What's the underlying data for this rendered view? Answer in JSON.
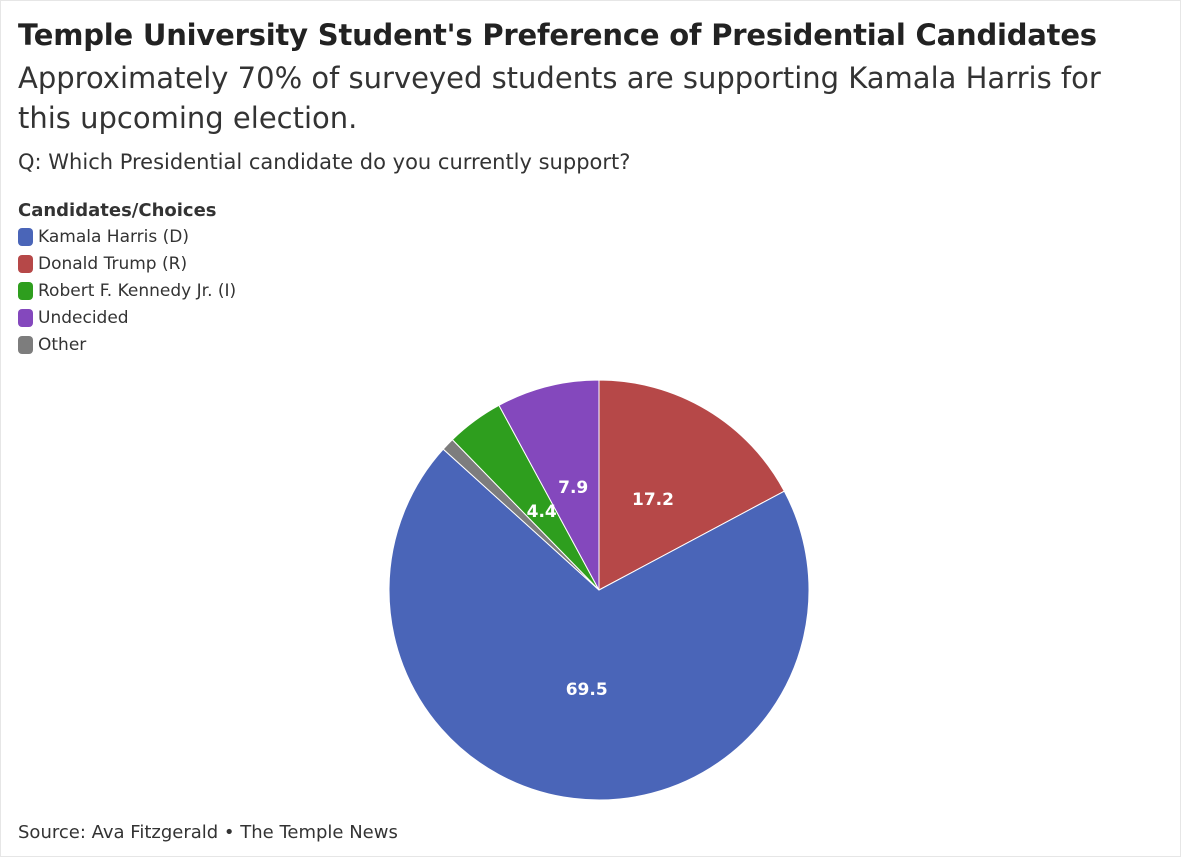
{
  "title": "Temple University Student's Preference of Presidential Candidates",
  "subtitle": "Approximately 70% of surveyed students are supporting Kamala Harris for this upcoming election.",
  "question": "Q: Which Presidential candidate do you currently support?",
  "legend": {
    "title": "Candidates/Choices",
    "items": [
      {
        "label": "Kamala Harris (D)",
        "color": "#4a65b8"
      },
      {
        "label": "Donald Trump (R)",
        "color": "#b64848"
      },
      {
        "label": "Robert F. Kennedy Jr. (I)",
        "color": "#2e9e1e"
      },
      {
        "label": "Undecided",
        "color": "#8448bd"
      },
      {
        "label": "Other",
        "color": "#7d7d7d"
      }
    ]
  },
  "source": "Source: Ava Fitzgerald • The Temple News",
  "chart_data": {
    "type": "pie",
    "title": "Temple University Student's Preference of Presidential Candidates",
    "categories": [
      "Kamala Harris (D)",
      "Donald Trump (R)",
      "Robert F. Kennedy Jr. (I)",
      "Undecided",
      "Other"
    ],
    "values": [
      69.5,
      17.2,
      4.4,
      7.9,
      1.0
    ],
    "labels": [
      "69.5",
      "17.2",
      "4.4",
      "7.9",
      ""
    ],
    "colors": [
      "#4a65b8",
      "#b64848",
      "#2e9e1e",
      "#8448bd",
      "#7d7d7d"
    ],
    "slice_order": [
      "Donald Trump (R)",
      "Kamala Harris (D)",
      "Other",
      "Robert F. Kennedy Jr. (I)",
      "Undecided"
    ],
    "legend_position": "top-left"
  }
}
